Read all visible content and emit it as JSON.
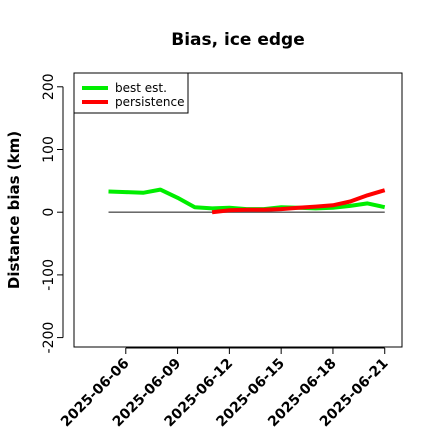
{
  "chart_data": {
    "type": "line",
    "title": "Bias, ice edge",
    "xlabel": "",
    "ylabel": "Distance bias (km)",
    "ylim": [
      -215,
      222
    ],
    "xlim": [
      "2025-06-03",
      "2025-06-22"
    ],
    "y_ticks": [
      -200,
      -100,
      0,
      100,
      200
    ],
    "x_ticks": [
      "2025-06-06",
      "2025-06-09",
      "2025-06-12",
      "2025-06-15",
      "2025-06-18",
      "2025-06-21"
    ],
    "reference_line": 0,
    "legend_position": "top-left",
    "grid": false,
    "series": [
      {
        "name": "best est.",
        "color": "#00ee00",
        "x": [
          "2025-06-05",
          "2025-06-06",
          "2025-06-07",
          "2025-06-08",
          "2025-06-09",
          "2025-06-10",
          "2025-06-11",
          "2025-06-12",
          "2025-06-13",
          "2025-06-14",
          "2025-06-15",
          "2025-06-16",
          "2025-06-17",
          "2025-06-18",
          "2025-06-19",
          "2025-06-20",
          "2025-06-21"
        ],
        "values": [
          33,
          32,
          31,
          36,
          23,
          8,
          6,
          7,
          5,
          5,
          8,
          7,
          6,
          7,
          10,
          14,
          8
        ]
      },
      {
        "name": "persistence",
        "color": "#ff0000",
        "x": [
          "2025-06-11",
          "2025-06-12",
          "2025-06-13",
          "2025-06-14",
          "2025-06-15",
          "2025-06-16",
          "2025-06-17",
          "2025-06-18",
          "2025-06-19",
          "2025-06-20",
          "2025-06-21"
        ],
        "values": [
          0,
          3,
          4,
          4,
          5,
          7,
          9,
          11,
          17,
          27,
          35
        ]
      }
    ]
  }
}
